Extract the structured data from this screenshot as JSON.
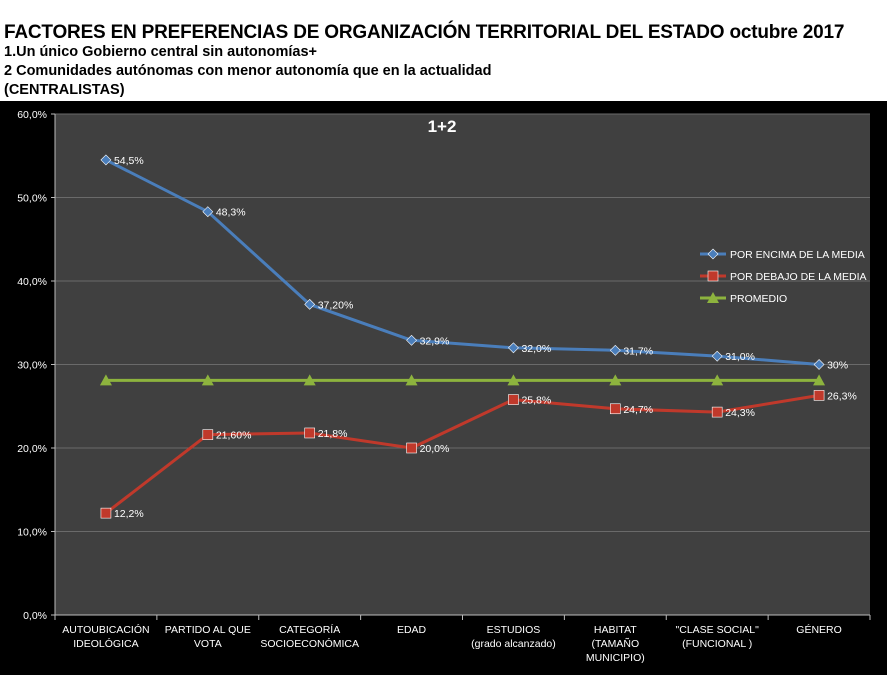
{
  "header": {
    "title": "FACTORES EN PREFERENCIAS  DE ORGANIZACIÓN TERRITORIAL DEL ESTADO  octubre 2017",
    "line1": "1.Un único Gobierno central sin autonomías+",
    "line2": "2 Comunidades autónomas con menor autonomía que en la actualidad",
    "line3": "(CENTRALISTAS)"
  },
  "chart_data": {
    "type": "line",
    "title": "1+2",
    "categories": [
      [
        "AUTOUBICACIÓN",
        "IDEOLÓGICA"
      ],
      [
        "PARTIDO AL QUE",
        "VOTA"
      ],
      [
        "CATEGORÍA",
        "SOCIOECONÓMICA"
      ],
      [
        "EDAD"
      ],
      [
        "ESTUDIOS",
        "(grado alcanzado)"
      ],
      [
        "HABITAT",
        "(TAMAÑO",
        "MUNICIPIO)"
      ],
      [
        "\"CLASE SOCIAL\"",
        "(FUNCIONAL )"
      ],
      [
        "GÉNERO"
      ]
    ],
    "ylim": [
      0,
      60
    ],
    "yticks": [
      "0,0%",
      "10,0%",
      "20,0%",
      "30,0%",
      "40,0%",
      "50,0%",
      "60,0%"
    ],
    "grid": true,
    "legend_position": "right",
    "series": [
      {
        "name": "POR ENCIMA DE LA MEDIA",
        "color": "#4a7ebb",
        "marker": "diamond",
        "values": [
          54.5,
          48.3,
          37.2,
          32.9,
          32.0,
          31.7,
          31.0,
          30.0
        ],
        "labels": [
          "54,5%",
          "48,3%",
          "37,20%",
          "32,9%",
          "32,0%",
          "31,7%",
          "31,0%",
          "30%"
        ]
      },
      {
        "name": "POR DEBAJO DE LA MEDIA",
        "color": "#c0392b",
        "marker": "square",
        "values": [
          12.2,
          21.6,
          21.8,
          20.0,
          25.8,
          24.7,
          24.3,
          26.3
        ],
        "labels": [
          "12,2%",
          "21,60%",
          "21,8%",
          "20,0%",
          "25,8%",
          "24,7%",
          "24,3%",
          "26,3%"
        ]
      },
      {
        "name": "PROMEDIO",
        "color": "#8db33e",
        "marker": "triangle",
        "values": [
          28.1,
          28.1,
          28.1,
          28.1,
          28.1,
          28.1,
          28.1,
          28.1
        ],
        "labels": []
      }
    ]
  }
}
